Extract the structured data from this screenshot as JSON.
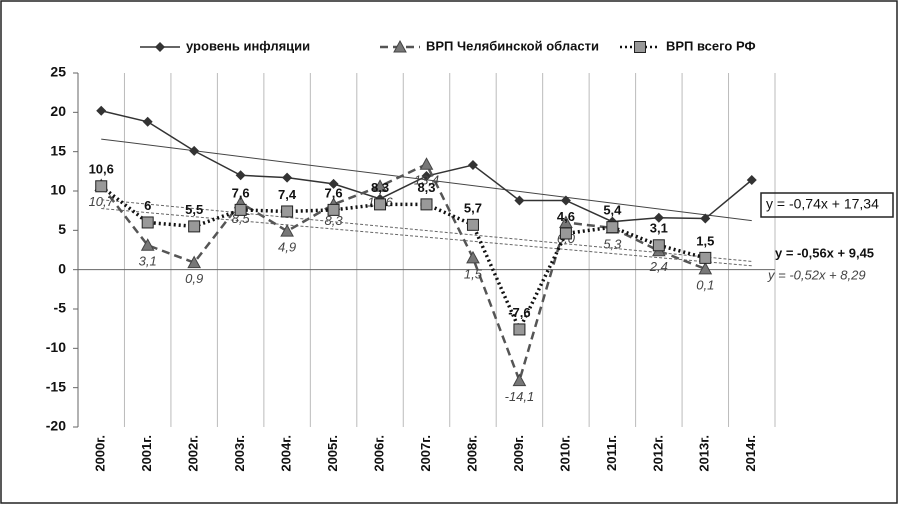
{
  "chart_data": {
    "type": "line",
    "categories": [
      "2000г.",
      "2001г.",
      "2002г.",
      "2003г.",
      "2004г.",
      "2005г.",
      "2006г.",
      "2007г.",
      "2008г.",
      "2009г.",
      "2010г.",
      "2011г.",
      "2012г.",
      "2013г.",
      "2014г."
    ],
    "ylim": [
      -20,
      25
    ],
    "yticks": [
      -20,
      -15,
      -10,
      -5,
      0,
      5,
      10,
      15,
      20,
      25
    ],
    "grid": true,
    "legend": "top",
    "series": [
      {
        "name": "уровень инфляции",
        "color": "#333333",
        "values": [
          20.2,
          18.8,
          15.1,
          12.0,
          11.7,
          10.9,
          9.0,
          11.9,
          13.3,
          8.8,
          8.8,
          6.1,
          6.6,
          6.5,
          11.4
        ],
        "trendline": {
          "label": "y = -0,74x + 17,34",
          "slope": -0.74,
          "intercept": 17.34
        }
      },
      {
        "name": "ВРП Челябинской области",
        "color": "#555555",
        "values": [
          10.7,
          3.1,
          0.9,
          8.5,
          4.9,
          8.3,
          10.6,
          13.4,
          1.5,
          -14.1,
          6.0,
          5.3,
          2.4,
          0.1,
          null
        ],
        "value_labels": [
          "10,7",
          "3,1",
          "0,9",
          "8,5",
          "4,9",
          "8,3",
          "10,6",
          "13,4",
          "1,5",
          "-14,1",
          "6,0",
          "5,3",
          "2,4",
          "0,1",
          null
        ],
        "trendline": {
          "label": "y = -0,52x + 8,29",
          "slope": -0.52,
          "intercept": 8.29
        }
      },
      {
        "name": "ВРП всего РФ",
        "color": "#111111",
        "values": [
          10.6,
          6,
          5.5,
          7.6,
          7.4,
          7.6,
          8.3,
          8.3,
          5.7,
          -7.6,
          4.6,
          5.4,
          3.1,
          1.5,
          null
        ],
        "value_labels": [
          "10,6",
          "6",
          "5,5",
          "7,6",
          "7,4",
          "7,6",
          "8,3",
          "8,3",
          "5,7",
          "-7,6",
          "4,6",
          "5,4",
          "3,1",
          "1,5",
          null
        ],
        "trendline": {
          "label": "y = -0,56x + 9,45",
          "slope": -0.56,
          "intercept": 9.45
        }
      }
    ]
  }
}
